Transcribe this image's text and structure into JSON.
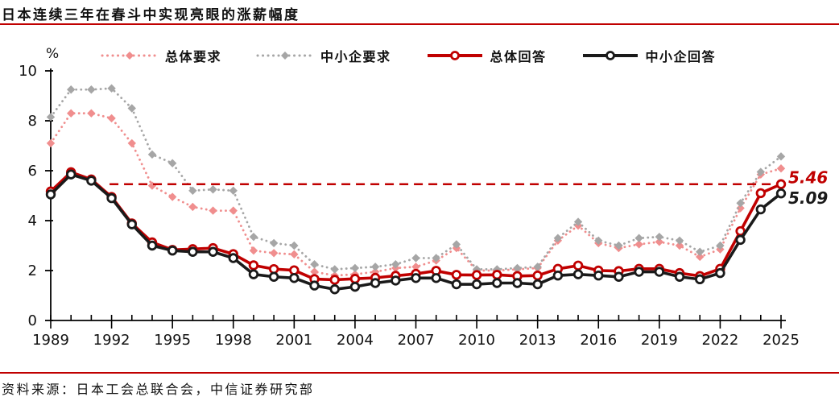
{
  "header": {
    "title": "日本连续三年在春斗中实现亮眼的涨薪幅度"
  },
  "footer": {
    "source": "资料来源：日本工会总联合会，中信证券研究部"
  },
  "colors": {
    "accent_red": "#c00000",
    "series_pink": "#f08e8e",
    "series_gray": "#a6a6a6",
    "series_red": "#c00000",
    "series_black": "#1a1a1a",
    "axis_black": "#000000"
  },
  "chart_data": {
    "type": "line",
    "unit_label": "%",
    "ylim": [
      0,
      10
    ],
    "y_ticks": [
      0,
      2,
      4,
      6,
      8,
      10
    ],
    "grid": false,
    "legend_position": "top",
    "x": [
      1989,
      1990,
      1991,
      1992,
      1993,
      1994,
      1995,
      1996,
      1997,
      1998,
      1999,
      2000,
      2001,
      2002,
      2003,
      2004,
      2005,
      2006,
      2007,
      2008,
      2009,
      2010,
      2011,
      2012,
      2013,
      2014,
      2015,
      2016,
      2017,
      2018,
      2019,
      2020,
      2021,
      2022,
      2023,
      2024,
      2025
    ],
    "x_tick_labels": [
      1989,
      1992,
      1995,
      1998,
      2001,
      2004,
      2007,
      2010,
      2013,
      2016,
      2019,
      2022,
      2025
    ],
    "series": [
      {
        "name": "总体要求",
        "style": "dotted-diamond",
        "color": "#f08e8e",
        "values": [
          7.1,
          8.3,
          8.3,
          8.1,
          7.1,
          5.4,
          4.95,
          4.55,
          4.4,
          4.4,
          2.8,
          2.7,
          2.65,
          1.95,
          1.8,
          1.85,
          1.95,
          2.1,
          2.15,
          2.4,
          2.9,
          2.0,
          2.0,
          2.05,
          2.1,
          3.2,
          3.8,
          3.1,
          2.9,
          3.05,
          3.15,
          3.0,
          2.55,
          2.85,
          4.5,
          5.85,
          6.09
        ]
      },
      {
        "name": "中小企要求",
        "style": "dotted-diamond",
        "color": "#a6a6a6",
        "values": [
          8.15,
          9.25,
          9.25,
          9.3,
          8.5,
          6.65,
          6.3,
          5.2,
          5.25,
          5.2,
          3.35,
          3.1,
          3.0,
          2.25,
          2.05,
          2.1,
          2.15,
          2.25,
          2.5,
          2.5,
          3.05,
          2.05,
          2.05,
          2.1,
          2.15,
          3.3,
          3.95,
          3.2,
          3.0,
          3.3,
          3.35,
          3.2,
          2.75,
          3.0,
          4.7,
          5.95,
          6.57
        ]
      },
      {
        "name": "总体回答",
        "style": "solid-circle",
        "color": "#c00000",
        "values": [
          5.17,
          5.94,
          5.65,
          4.95,
          3.89,
          3.13,
          2.83,
          2.86,
          2.9,
          2.66,
          2.21,
          2.06,
          2.01,
          1.66,
          1.63,
          1.67,
          1.71,
          1.79,
          1.87,
          1.99,
          1.83,
          1.82,
          1.83,
          1.78,
          1.8,
          2.07,
          2.2,
          2.0,
          1.98,
          2.07,
          2.07,
          1.9,
          1.78,
          2.07,
          3.58,
          5.1,
          5.46
        ]
      },
      {
        "name": "中小企回答",
        "style": "solid-circle",
        "color": "#1a1a1a",
        "values": [
          5.05,
          5.85,
          5.6,
          4.9,
          3.85,
          3.0,
          2.8,
          2.75,
          2.75,
          2.5,
          1.85,
          1.75,
          1.7,
          1.4,
          1.25,
          1.35,
          1.5,
          1.6,
          1.7,
          1.7,
          1.45,
          1.45,
          1.5,
          1.5,
          1.45,
          1.8,
          1.85,
          1.8,
          1.75,
          1.95,
          1.95,
          1.75,
          1.65,
          1.9,
          3.23,
          4.45,
          5.09
        ]
      }
    ],
    "reference_line": {
      "value": 5.46,
      "color": "#c00000",
      "from_year": 1991.9,
      "to_year": 2025
    },
    "annotations": [
      {
        "text": "5.46",
        "value": 5.46,
        "dy": -7,
        "color": "#c00000"
      },
      {
        "text": "5.09",
        "value": 5.09,
        "dy": 7,
        "color": "#1a1a1a"
      }
    ]
  }
}
